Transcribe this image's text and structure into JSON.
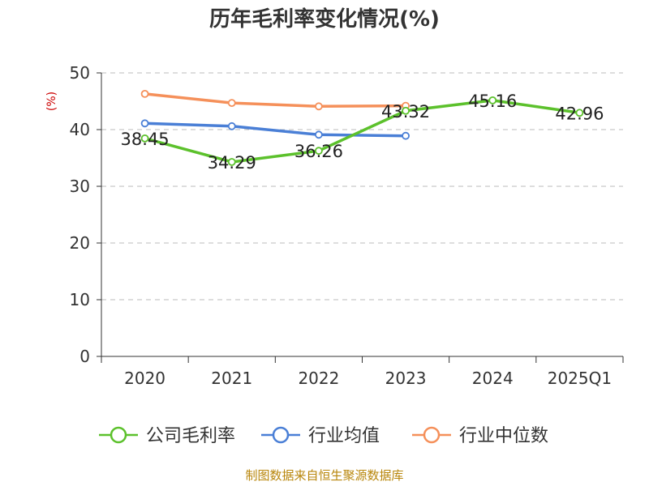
{
  "chart_data": {
    "type": "line",
    "title": "历年毛利率变化情况(%)",
    "unit_label": "(%)",
    "categories": [
      "2020",
      "2021",
      "2022",
      "2023",
      "2024",
      "2025Q1"
    ],
    "ylim": [
      0,
      50
    ],
    "yticks": [
      "0",
      "10",
      "20",
      "30",
      "40",
      "50"
    ],
    "grid": true,
    "legend_position": "bottom",
    "series": [
      {
        "name": "公司毛利率",
        "color": "#5cc12c",
        "values": [
          38.45,
          34.29,
          36.26,
          43.32,
          45.16,
          42.96
        ],
        "labels": [
          "38.45",
          "34.29",
          "36.26",
          "43.32",
          "45.16",
          "42.96"
        ]
      },
      {
        "name": "行业均值",
        "color": "#4a7fd6",
        "values": [
          41.1,
          40.6,
          39.1,
          38.9,
          null,
          null
        ]
      },
      {
        "name": "行业中位数",
        "color": "#f5905a",
        "values": [
          46.3,
          44.7,
          44.1,
          44.2,
          null,
          null
        ]
      }
    ],
    "source": "制图数据来自恒生聚源数据库"
  }
}
